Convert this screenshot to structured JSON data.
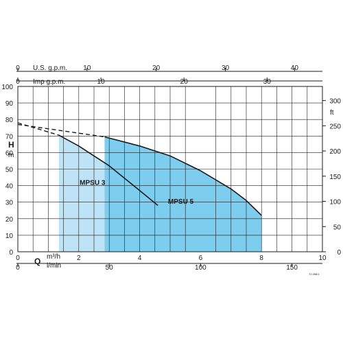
{
  "chart_data": {
    "type": "area",
    "ylabel_left": "H",
    "ylabel_left_unit": "m",
    "ylabel_right_unit": "ft",
    "xlabel": "Q",
    "x_unit_primary": "m³/h",
    "x_unit_secondary": "l/min",
    "top_axis_1_label": "U.S. g.p.m.",
    "top_axis_2_label": "Imp g.p.m.",
    "footnote": "72.398/1",
    "grid": true,
    "xlim": [
      0,
      10
    ],
    "ylim": [
      0,
      100
    ],
    "axes": {
      "x_m3h": {
        "min": 0,
        "max": 10,
        "ticks": [
          "0",
          "2",
          "4",
          "6",
          "8",
          "10"
        ],
        "tick_values": [
          0,
          2,
          4,
          6,
          8,
          10
        ]
      },
      "x_lmin": {
        "ticks": [
          "0",
          "50",
          "100",
          "150"
        ],
        "tick_values": [
          0,
          50,
          100,
          150
        ]
      },
      "x_usgpm": {
        "ticks": [
          "0",
          "10",
          "20",
          "30",
          "40"
        ],
        "tick_values": [
          0,
          10,
          20,
          30,
          40
        ]
      },
      "x_impgpm": {
        "ticks": [
          "0",
          "10",
          "20",
          "30"
        ],
        "tick_values": [
          0,
          10,
          20,
          30
        ]
      },
      "y_m": {
        "min": 0,
        "max": 100,
        "ticks": [
          "0",
          "10",
          "20",
          "30",
          "40",
          "50",
          "60",
          "70",
          "80",
          "90",
          "100"
        ],
        "tick_values": [
          0,
          10,
          20,
          30,
          40,
          50,
          60,
          70,
          80,
          90,
          100
        ]
      },
      "y_ft": {
        "ticks": [
          "0",
          "50",
          "100",
          "150",
          "200",
          "250",
          "300"
        ],
        "tick_values": [
          0,
          50,
          100,
          150,
          200,
          250,
          300
        ]
      }
    },
    "series": [
      {
        "name": "MPSU 3",
        "color": "#bfe3f6",
        "region_x": [
          1.35,
          4.6
        ],
        "shutoff_dashed": [
          [
            0,
            78
          ],
          [
            1.35,
            70.5
          ]
        ],
        "curve": [
          [
            1.35,
            70.5
          ],
          [
            2.0,
            64
          ],
          [
            3.0,
            52
          ],
          [
            4.0,
            37
          ],
          [
            4.6,
            28
          ]
        ]
      },
      {
        "name": "MPSU 5",
        "color": "#7ccdee",
        "region_x": [
          2.85,
          8.0
        ],
        "shutoff_dashed": [
          [
            0,
            77
          ],
          [
            2.85,
            69.5
          ]
        ],
        "curve": [
          [
            2.85,
            69.5
          ],
          [
            4.0,
            64
          ],
          [
            5.0,
            58
          ],
          [
            6.0,
            49
          ],
          [
            7.0,
            38
          ],
          [
            7.5,
            31
          ],
          [
            8.0,
            22
          ]
        ]
      }
    ]
  }
}
